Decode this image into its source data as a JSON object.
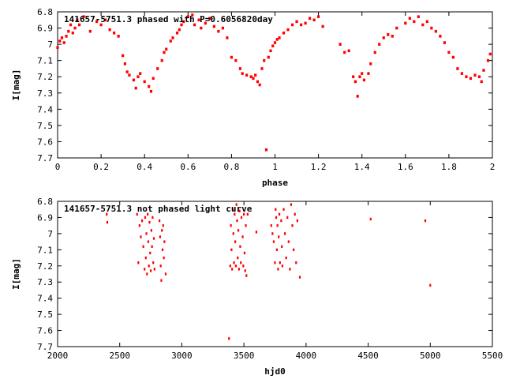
{
  "chart_data": [
    {
      "type": "scatter",
      "title": "141657-5751.3 phased with P=0.6056820day",
      "xlabel": "phase",
      "ylabel": "I[mag]",
      "xlim": [
        0,
        2
      ],
      "ylim": [
        6.8,
        7.7
      ],
      "y_inverted": true,
      "xticks": [
        "0",
        "0.2",
        "0.4",
        "0.6",
        "0.8",
        "1",
        "1.2",
        "1.4",
        "1.6",
        "1.8",
        "2"
      ],
      "yticks": [
        "6.8",
        "6.9",
        "7",
        "7.1",
        "7.2",
        "7.3",
        "7.4",
        "7.5",
        "7.6",
        "7.7"
      ],
      "marker_color": "#ff0000",
      "points": [
        [
          0.0,
          7.02
        ],
        [
          0.01,
          6.98
        ],
        [
          0.02,
          6.96
        ],
        [
          0.03,
          6.99
        ],
        [
          0.04,
          6.95
        ],
        [
          0.05,
          6.92
        ],
        [
          0.06,
          6.88
        ],
        [
          0.07,
          6.93
        ],
        [
          0.08,
          6.9
        ],
        [
          0.09,
          6.85
        ],
        [
          0.1,
          6.88
        ],
        [
          0.12,
          6.83
        ],
        [
          0.15,
          6.92
        ],
        [
          0.18,
          6.86
        ],
        [
          0.2,
          6.88
        ],
        [
          0.22,
          6.85
        ],
        [
          0.24,
          6.91
        ],
        [
          0.26,
          6.93
        ],
        [
          0.28,
          6.95
        ],
        [
          0.3,
          7.07
        ],
        [
          0.31,
          7.12
        ],
        [
          0.32,
          7.17
        ],
        [
          0.33,
          7.19
        ],
        [
          0.35,
          7.22
        ],
        [
          0.36,
          7.27
        ],
        [
          0.37,
          7.2
        ],
        [
          0.38,
          7.18
        ],
        [
          0.4,
          7.23
        ],
        [
          0.42,
          7.26
        ],
        [
          0.43,
          7.29
        ],
        [
          0.44,
          7.21
        ],
        [
          0.46,
          7.15
        ],
        [
          0.48,
          7.1
        ],
        [
          0.49,
          7.05
        ],
        [
          0.5,
          7.03
        ],
        [
          0.52,
          6.98
        ],
        [
          0.53,
          6.96
        ],
        [
          0.55,
          6.93
        ],
        [
          0.56,
          6.91
        ],
        [
          0.57,
          6.88
        ],
        [
          0.58,
          6.86
        ],
        [
          0.6,
          6.83
        ],
        [
          0.62,
          6.82
        ],
        [
          0.63,
          6.88
        ],
        [
          0.65,
          6.85
        ],
        [
          0.66,
          6.9
        ],
        [
          0.68,
          6.87
        ],
        [
          0.7,
          6.84
        ],
        [
          0.72,
          6.89
        ],
        [
          0.74,
          6.92
        ],
        [
          0.76,
          6.9
        ],
        [
          0.78,
          6.96
        ],
        [
          0.8,
          7.08
        ],
        [
          0.82,
          7.1
        ],
        [
          0.84,
          7.15
        ],
        [
          0.85,
          7.18
        ],
        [
          0.87,
          7.19
        ],
        [
          0.89,
          7.2
        ],
        [
          0.9,
          7.21
        ],
        [
          0.91,
          7.19
        ],
        [
          0.92,
          7.23
        ],
        [
          0.93,
          7.25
        ],
        [
          0.94,
          7.15
        ],
        [
          0.95,
          7.1
        ],
        [
          0.96,
          7.65
        ],
        [
          0.97,
          7.08
        ],
        [
          0.98,
          7.04
        ],
        [
          0.99,
          7.01
        ],
        [
          1.0,
          6.99
        ],
        [
          1.01,
          6.97
        ],
        [
          1.02,
          6.96
        ],
        [
          1.04,
          6.93
        ],
        [
          1.06,
          6.91
        ],
        [
          1.08,
          6.88
        ],
        [
          1.1,
          6.86
        ],
        [
          1.12,
          6.88
        ],
        [
          1.14,
          6.87
        ],
        [
          1.16,
          6.84
        ],
        [
          1.18,
          6.85
        ],
        [
          1.2,
          6.83
        ],
        [
          1.22,
          6.89
        ],
        [
          1.3,
          7.0
        ],
        [
          1.32,
          7.05
        ],
        [
          1.34,
          7.04
        ],
        [
          1.36,
          7.2
        ],
        [
          1.37,
          7.23
        ],
        [
          1.38,
          7.32
        ],
        [
          1.39,
          7.2
        ],
        [
          1.4,
          7.18
        ],
        [
          1.41,
          7.22
        ],
        [
          1.43,
          7.18
        ],
        [
          1.44,
          7.12
        ],
        [
          1.46,
          7.05
        ],
        [
          1.48,
          7.0
        ],
        [
          1.5,
          6.96
        ],
        [
          1.52,
          6.94
        ],
        [
          1.54,
          6.95
        ],
        [
          1.56,
          6.9
        ],
        [
          1.6,
          6.87
        ],
        [
          1.62,
          6.84
        ],
        [
          1.64,
          6.86
        ],
        [
          1.66,
          6.83
        ],
        [
          1.68,
          6.88
        ],
        [
          1.7,
          6.86
        ],
        [
          1.72,
          6.9
        ],
        [
          1.74,
          6.92
        ],
        [
          1.76,
          6.95
        ],
        [
          1.78,
          6.99
        ],
        [
          1.8,
          7.05
        ],
        [
          1.82,
          7.08
        ],
        [
          1.84,
          7.15
        ],
        [
          1.86,
          7.18
        ],
        [
          1.88,
          7.2
        ],
        [
          1.9,
          7.21
        ],
        [
          1.92,
          7.19
        ],
        [
          1.94,
          7.2
        ],
        [
          1.95,
          7.23
        ],
        [
          1.96,
          7.16
        ],
        [
          1.98,
          7.1
        ],
        [
          1.99,
          7.06
        ]
      ]
    },
    {
      "type": "scatter",
      "title": "141657-5751.3 not phased light curve",
      "xlabel": "hjd0",
      "ylabel": "I[mag]",
      "xlim": [
        2000,
        5500
      ],
      "ylim": [
        6.8,
        7.7
      ],
      "y_inverted": true,
      "xticks": [
        "2000",
        "2500",
        "3000",
        "3500",
        "4000",
        "4500",
        "5000",
        "5500"
      ],
      "yticks": [
        "6.8",
        "6.9",
        "7",
        "7.1",
        "7.2",
        "7.3",
        "7.4",
        "7.5",
        "7.6",
        "7.7"
      ],
      "marker_color": "#ff0000",
      "points": [
        [
          2395,
          6.88
        ],
        [
          2400,
          6.93
        ],
        [
          2640,
          6.88
        ],
        [
          2650,
          7.18
        ],
        [
          2660,
          6.95
        ],
        [
          2670,
          7.02
        ],
        [
          2680,
          6.92
        ],
        [
          2690,
          7.08
        ],
        [
          2700,
          7.22
        ],
        [
          2705,
          6.9
        ],
        [
          2710,
          7.15
        ],
        [
          2715,
          7.0
        ],
        [
          2720,
          7.25
        ],
        [
          2725,
          6.88
        ],
        [
          2730,
          7.05
        ],
        [
          2735,
          7.2
        ],
        [
          2740,
          6.93
        ],
        [
          2745,
          7.12
        ],
        [
          2750,
          7.23
        ],
        [
          2755,
          6.98
        ],
        [
          2760,
          7.08
        ],
        [
          2765,
          6.9
        ],
        [
          2770,
          7.18
        ],
        [
          2775,
          7.03
        ],
        [
          2780,
          7.22
        ],
        [
          2820,
          6.92
        ],
        [
          2825,
          7.02
        ],
        [
          2830,
          7.2
        ],
        [
          2835,
          7.29
        ],
        [
          2840,
          6.98
        ],
        [
          2845,
          7.1
        ],
        [
          2850,
          6.95
        ],
        [
          2855,
          7.15
        ],
        [
          2860,
          7.05
        ],
        [
          2870,
          7.25
        ],
        [
          3380,
          7.65
        ],
        [
          3390,
          7.2
        ],
        [
          3395,
          6.95
        ],
        [
          3400,
          7.1
        ],
        [
          3405,
          7.22
        ],
        [
          3410,
          6.85
        ],
        [
          3415,
          7.0
        ],
        [
          3420,
          7.18
        ],
        [
          3425,
          6.88
        ],
        [
          3430,
          7.05
        ],
        [
          3435,
          7.2
        ],
        [
          3440,
          6.82
        ],
        [
          3445,
          6.92
        ],
        [
          3450,
          7.15
        ],
        [
          3455,
          6.98
        ],
        [
          3460,
          7.22
        ],
        [
          3465,
          6.86
        ],
        [
          3470,
          7.08
        ],
        [
          3475,
          7.18
        ],
        [
          3480,
          6.9
        ],
        [
          3490,
          7.02
        ],
        [
          3495,
          7.2
        ],
        [
          3500,
          6.88
        ],
        [
          3505,
          7.12
        ],
        [
          3510,
          7.23
        ],
        [
          3515,
          6.95
        ],
        [
          3520,
          7.26
        ],
        [
          3530,
          6.88
        ],
        [
          3600,
          6.99
        ],
        [
          3720,
          6.95
        ],
        [
          3730,
          7.0
        ],
        [
          3740,
          7.05
        ],
        [
          3750,
          7.18
        ],
        [
          3755,
          6.85
        ],
        [
          3760,
          6.9
        ],
        [
          3765,
          7.1
        ],
        [
          3770,
          6.95
        ],
        [
          3775,
          7.22
        ],
        [
          3780,
          7.02
        ],
        [
          3785,
          6.88
        ],
        [
          3790,
          7.18
        ],
        [
          3800,
          6.92
        ],
        [
          3805,
          7.08
        ],
        [
          3810,
          7.2
        ],
        [
          3820,
          6.85
        ],
        [
          3830,
          7.0
        ],
        [
          3840,
          7.15
        ],
        [
          3850,
          6.9
        ],
        [
          3860,
          7.05
        ],
        [
          3870,
          7.22
        ],
        [
          3880,
          6.82
        ],
        [
          3890,
          6.95
        ],
        [
          3900,
          7.1
        ],
        [
          3910,
          6.88
        ],
        [
          3920,
          7.18
        ],
        [
          3930,
          6.92
        ],
        [
          3950,
          7.27
        ],
        [
          4520,
          6.91
        ],
        [
          4960,
          6.92
        ],
        [
          5000,
          7.32
        ]
      ]
    }
  ]
}
